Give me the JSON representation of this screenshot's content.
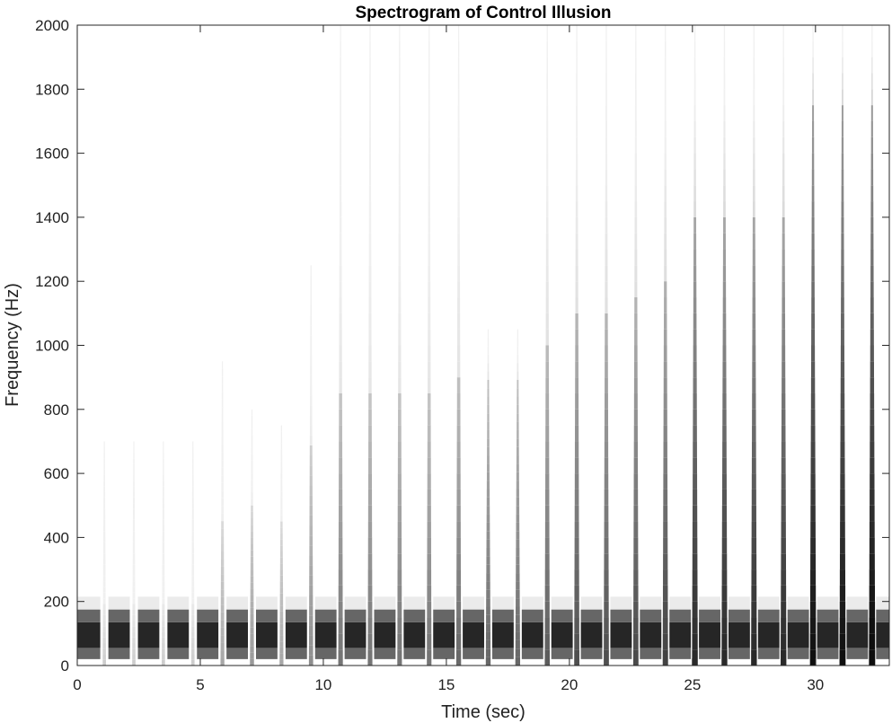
{
  "chart_data": {
    "type": "heatmap",
    "title": "Spectrogram of Control Illusion",
    "xlabel": "Time (sec)",
    "ylabel": "Frequency (Hz)",
    "xlim": [
      0,
      33
    ],
    "ylim": [
      0,
      2000
    ],
    "xticks": [
      0,
      5,
      10,
      15,
      20,
      25,
      30
    ],
    "yticks": [
      0,
      200,
      400,
      600,
      800,
      1000,
      1200,
      1400,
      1600,
      1800,
      2000
    ],
    "colormap": "grayscale (dark = high energy)",
    "grid": false,
    "bands": [
      {
        "f_low": 0,
        "f_high": 20,
        "intensity": 0
      },
      {
        "f_low": 20,
        "f_high": 55,
        "intensity": 0.6
      },
      {
        "f_low": 55,
        "f_high": 135,
        "intensity": 0.85
      },
      {
        "f_low": 135,
        "f_high": 175,
        "intensity": 0.6
      },
      {
        "f_low": 175,
        "f_high": 215,
        "intensity": 0.08
      }
    ],
    "band_extent_sec": [
      0,
      33
    ],
    "onsets_sec": [
      1.1,
      2.3,
      3.5,
      4.7,
      5.9,
      7.1,
      8.3,
      9.5,
      10.7,
      11.9,
      13.1,
      14.3,
      15.5,
      16.7,
      17.9,
      19.1,
      20.3,
      21.5,
      22.7,
      23.9,
      25.1,
      26.3,
      27.5,
      28.7,
      29.9,
      31.1,
      32.3
    ],
    "onset_max_freq_hz": [
      700,
      700,
      700,
      700,
      950,
      800,
      750,
      1250,
      2000,
      2000,
      2000,
      2000,
      2000,
      1050,
      1050,
      2000,
      2000,
      2000,
      2000,
      2000,
      2000,
      2000,
      2000,
      2000,
      2000,
      2000,
      2000
    ],
    "onset_energy_to_hz": [
      200,
      200,
      200,
      200,
      450,
      500,
      450,
      700,
      850,
      850,
      850,
      850,
      900,
      900,
      900,
      1000,
      1100,
      1100,
      1150,
      1200,
      1400,
      1400,
      1400,
      1400,
      1750,
      1750,
      1750
    ],
    "onset_strength": [
      0.2,
      0.2,
      0.2,
      0.2,
      0.35,
      0.4,
      0.35,
      0.45,
      0.55,
      0.55,
      0.55,
      0.55,
      0.6,
      0.6,
      0.6,
      0.65,
      0.7,
      0.7,
      0.72,
      0.75,
      0.85,
      0.85,
      0.85,
      0.85,
      0.95,
      0.95,
      0.98
    ]
  }
}
